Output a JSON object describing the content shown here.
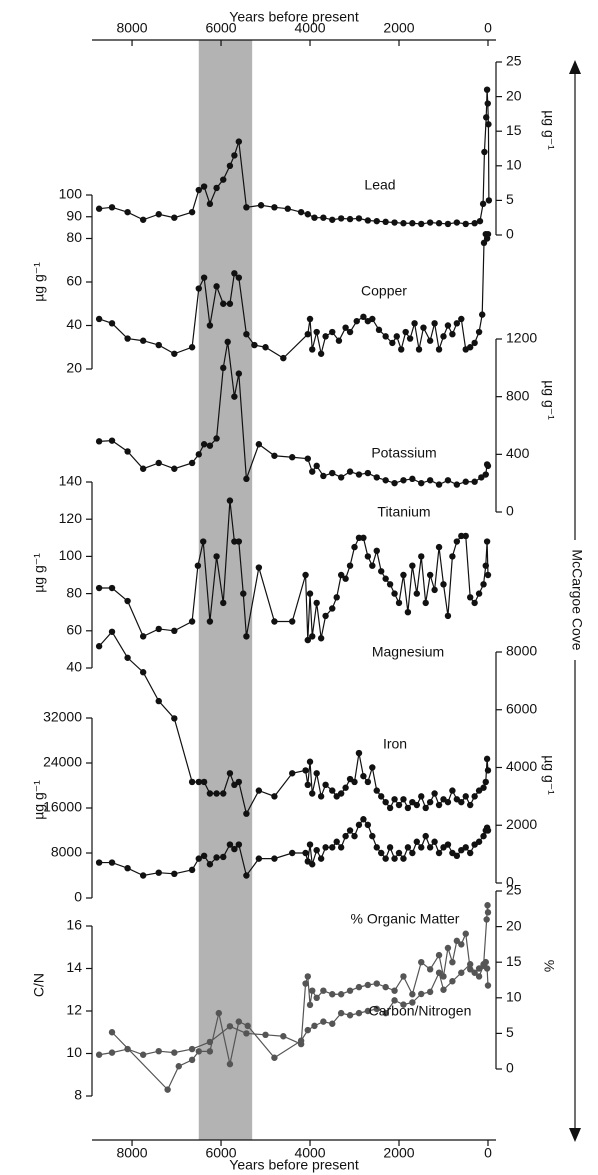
{
  "chart_data": {
    "type": "line",
    "x_label": "Years before present",
    "site": "McCargoe Cove",
    "xlim": [
      8900,
      -180
    ],
    "xticks": [
      8000,
      6000,
      4000,
      2000,
      0
    ],
    "shade": [
      6500,
      5300
    ],
    "axes": [
      {
        "side": "right",
        "label": "µg g⁻¹",
        "ylim": [
          0,
          25
        ],
        "yticks": [
          0,
          5,
          10,
          15,
          20,
          25
        ]
      },
      {
        "side": "left",
        "label": "µg g⁻¹",
        "ylim": [
          20,
          100
        ],
        "yticks": [
          20,
          40,
          60,
          80,
          90,
          100
        ]
      },
      {
        "side": "right",
        "label": "µg g⁻¹",
        "ylim": [
          0,
          1200
        ],
        "yticks": [
          0,
          400,
          800,
          1200
        ]
      },
      {
        "side": "left",
        "label": "µg g⁻¹",
        "ylim": [
          40,
          140
        ],
        "yticks": [
          40,
          60,
          80,
          100,
          120,
          140
        ]
      },
      {
        "side": "right",
        "label": "µg g⁻¹",
        "ylim": [
          0,
          8000
        ],
        "yticks": [
          0,
          2000,
          4000,
          6000,
          8000
        ]
      },
      {
        "side": "left",
        "label": "µg g⁻¹",
        "ylim": [
          0,
          32000
        ],
        "yticks": [
          0,
          8000,
          16000,
          24000,
          32000
        ]
      },
      {
        "side": "right",
        "label": "%",
        "ylim": [
          0,
          25
        ],
        "yticks": [
          0,
          5,
          10,
          15,
          20,
          25
        ]
      },
      {
        "side": "left",
        "label": "C/N",
        "ylim": [
          8,
          16
        ],
        "yticks": [
          8,
          10,
          12,
          14,
          16
        ]
      }
    ],
    "series": [
      {
        "name": "Lead",
        "color": "#111111",
        "axis": 0,
        "x": [
          8740,
          8450,
          8100,
          7750,
          7400,
          7050,
          6650,
          6500,
          6380,
          6250,
          6100,
          5950,
          5800,
          5700,
          5600,
          5430,
          5100,
          4800,
          4500,
          4200,
          4050,
          3900,
          3700,
          3500,
          3300,
          3100,
          2900,
          2700,
          2500,
          2300,
          2100,
          1900,
          1700,
          1500,
          1300,
          1100,
          900,
          700,
          500,
          300,
          180,
          110,
          80,
          40,
          20,
          5,
          -10,
          -20
        ],
        "values": [
          3.8,
          4.0,
          3.3,
          2.2,
          3.0,
          2.5,
          3.3,
          6.5,
          7.0,
          4.5,
          6.8,
          8.0,
          10.0,
          11.5,
          13.5,
          4.0,
          4.3,
          4.0,
          3.8,
          3.3,
          3.0,
          2.5,
          2.5,
          2.2,
          2.4,
          2.3,
          2.4,
          2.1,
          2.0,
          1.9,
          1.8,
          1.7,
          1.7,
          1.6,
          1.8,
          1.7,
          1.6,
          1.8,
          1.6,
          1.7,
          2.0,
          4.5,
          12,
          17,
          21,
          19,
          16,
          5
        ]
      },
      {
        "name": "Copper",
        "color": "#111111",
        "axis": 1,
        "x": [
          8740,
          8450,
          8100,
          7750,
          7400,
          7050,
          6650,
          6500,
          6380,
          6250,
          6100,
          5950,
          5800,
          5700,
          5600,
          5430,
          5250,
          5000,
          4600,
          4050,
          4000,
          3950,
          3850,
          3750,
          3650,
          3500,
          3350,
          3200,
          3100,
          2950,
          2800,
          2700,
          2600,
          2450,
          2300,
          2150,
          2050,
          1950,
          1850,
          1750,
          1650,
          1550,
          1450,
          1300,
          1200,
          1100,
          1000,
          900,
          800,
          700,
          600,
          500,
          400,
          300,
          200,
          130,
          90,
          50,
          20,
          0
        ],
        "values": [
          43,
          41,
          34,
          33,
          31,
          27,
          30,
          57,
          62,
          40,
          58,
          50,
          50,
          64,
          62,
          36,
          31,
          30,
          25,
          36,
          43,
          29,
          37,
          27,
          35,
          37,
          33,
          39,
          37,
          42,
          44,
          42,
          43,
          38,
          35,
          32,
          35,
          29,
          37,
          34,
          41,
          29,
          39,
          33,
          41,
          29,
          35,
          40,
          36,
          41,
          43,
          29,
          30,
          32,
          37,
          45,
          78,
          82,
          80,
          82
        ]
      },
      {
        "name": "Potassium",
        "color": "#111111",
        "axis": 2,
        "x": [
          8740,
          8450,
          8100,
          7750,
          7400,
          7050,
          6650,
          6500,
          6380,
          6250,
          6100,
          5950,
          5850,
          5700,
          5600,
          5430,
          5150,
          4800,
          4400,
          4050,
          3950,
          3850,
          3700,
          3500,
          3300,
          3100,
          2900,
          2700,
          2500,
          2300,
          2100,
          1900,
          1700,
          1500,
          1300,
          1100,
          900,
          700,
          500,
          300,
          150,
          50,
          20,
          0
        ],
        "values": [
          490,
          495,
          420,
          300,
          340,
          300,
          340,
          400,
          470,
          460,
          510,
          1000,
          1180,
          800,
          960,
          230,
          470,
          390,
          380,
          370,
          280,
          320,
          250,
          270,
          240,
          280,
          260,
          270,
          240,
          220,
          200,
          220,
          230,
          200,
          220,
          190,
          220,
          190,
          210,
          210,
          240,
          260,
          330,
          320
        ]
      },
      {
        "name": "Titanium",
        "color": "#111111",
        "axis": 3,
        "x": [
          8740,
          8450,
          8100,
          7750,
          7400,
          7050,
          6650,
          6520,
          6400,
          6250,
          6100,
          5950,
          5800,
          5700,
          5600,
          5500,
          5430,
          5150,
          4800,
          4400,
          4100,
          4050,
          4000,
          3950,
          3850,
          3750,
          3650,
          3500,
          3400,
          3300,
          3200,
          3100,
          3000,
          2900,
          2800,
          2700,
          2600,
          2500,
          2400,
          2300,
          2200,
          2100,
          2000,
          1900,
          1800,
          1700,
          1600,
          1500,
          1400,
          1300,
          1200,
          1100,
          1000,
          900,
          800,
          700,
          600,
          500,
          400,
          300,
          200,
          100,
          50,
          20,
          0
        ],
        "values": [
          83,
          83,
          76,
          57,
          61,
          60,
          65,
          95,
          108,
          65,
          100,
          75,
          130,
          108,
          108,
          80,
          57,
          94,
          65,
          65,
          90,
          55,
          80,
          57,
          75,
          56,
          68,
          72,
          78,
          90,
          88,
          95,
          105,
          110,
          110,
          100,
          95,
          103,
          92,
          88,
          85,
          80,
          75,
          90,
          70,
          95,
          80,
          100,
          75,
          90,
          82,
          105,
          85,
          68,
          100,
          108,
          111,
          111,
          78,
          75,
          80,
          85,
          95,
          108,
          90
        ]
      },
      {
        "name": "Magnesium",
        "color": "#111111",
        "axis": 4,
        "x": [
          8740,
          8450,
          8100,
          7750,
          7400,
          7050,
          6650,
          6500,
          6380,
          6250,
          6100,
          5950,
          5800,
          5700,
          5600,
          5430,
          5150,
          4800,
          4400,
          4100,
          4050,
          4000,
          3950,
          3850,
          3750,
          3650,
          3500,
          3400,
          3300,
          3200,
          3100,
          3000,
          2900,
          2800,
          2700,
          2600,
          2500,
          2400,
          2300,
          2200,
          2100,
          2000,
          1900,
          1800,
          1700,
          1600,
          1500,
          1400,
          1300,
          1200,
          1100,
          1000,
          900,
          800,
          700,
          600,
          500,
          400,
          300,
          200,
          100,
          50,
          20,
          0
        ],
        "values": [
          8200,
          8700,
          7800,
          7300,
          6300,
          5700,
          3500,
          3500,
          3500,
          3100,
          3100,
          3100,
          3800,
          3400,
          3500,
          2400,
          3200,
          3000,
          3800,
          3900,
          3400,
          4200,
          3100,
          3800,
          3000,
          3400,
          3200,
          3000,
          3100,
          3300,
          3600,
          3500,
          4500,
          3700,
          3500,
          4000,
          3200,
          3000,
          2800,
          2600,
          2900,
          2700,
          2900,
          2600,
          2800,
          2700,
          3000,
          2600,
          2800,
          3100,
          2700,
          2900,
          2800,
          3200,
          2900,
          2800,
          3000,
          2700,
          3000,
          3200,
          3300,
          3500,
          4300,
          3900
        ]
      },
      {
        "name": "Iron",
        "color": "#111111",
        "axis": 5,
        "x": [
          8740,
          8450,
          8100,
          7750,
          7400,
          7050,
          6650,
          6500,
          6380,
          6250,
          6100,
          5950,
          5800,
          5700,
          5600,
          5430,
          5150,
          4800,
          4400,
          4100,
          4050,
          4000,
          3950,
          3850,
          3750,
          3650,
          3500,
          3400,
          3300,
          3200,
          3100,
          3000,
          2900,
          2800,
          2700,
          2600,
          2500,
          2400,
          2300,
          2200,
          2100,
          2000,
          1900,
          1800,
          1700,
          1600,
          1500,
          1400,
          1300,
          1200,
          1100,
          1000,
          900,
          800,
          700,
          600,
          500,
          400,
          300,
          200,
          100,
          50,
          20,
          0
        ],
        "values": [
          6300,
          6300,
          5300,
          4000,
          4500,
          4300,
          5000,
          7000,
          7500,
          6000,
          7200,
          7300,
          9500,
          8700,
          9500,
          4000,
          7000,
          7000,
          8000,
          8000,
          6500,
          9500,
          6000,
          8500,
          7000,
          9000,
          9000,
          10000,
          9000,
          11000,
          12000,
          11000,
          13000,
          14000,
          13000,
          11000,
          9000,
          8000,
          7000,
          9000,
          7000,
          8000,
          7000,
          9000,
          8000,
          10000,
          9000,
          11000,
          9000,
          10000,
          8000,
          9000,
          9500,
          8000,
          7500,
          8500,
          9000,
          8000,
          9500,
          10000,
          11000,
          12000,
          12500,
          12000
        ]
      },
      {
        "name": "% Organic Matter",
        "color": "#555555",
        "axis": 6,
        "x": [
          8740,
          8450,
          8100,
          7750,
          7400,
          7050,
          6650,
          6250,
          5800,
          5430,
          5000,
          4600,
          4200,
          4100,
          4050,
          4000,
          3950,
          3850,
          3700,
          3500,
          3300,
          3100,
          2900,
          2700,
          2500,
          2300,
          2100,
          1900,
          1700,
          1500,
          1300,
          1100,
          1000,
          900,
          800,
          700,
          600,
          500,
          400,
          200,
          100,
          30,
          10,
          0
        ],
        "values": [
          2.0,
          2.3,
          2.8,
          2.0,
          2.5,
          2.3,
          2.8,
          3.8,
          6.0,
          5.0,
          4.8,
          4.6,
          3.5,
          12.0,
          13.0,
          9.0,
          11.0,
          10.0,
          11.0,
          10.5,
          10.5,
          11.0,
          11.5,
          11.8,
          12.0,
          11.5,
          11.0,
          13.0,
          10.5,
          15.0,
          14.0,
          16.0,
          13.0,
          17.0,
          15.0,
          18.0,
          17.5,
          19.0,
          14.0,
          13.0,
          14.5,
          21.0,
          23.0,
          22.0
        ]
      },
      {
        "name": "Carbon/Nitrogen",
        "color": "#555555",
        "axis": 7,
        "x": [
          8450,
          7200,
          6950,
          6650,
          6500,
          6250,
          6050,
          5800,
          5600,
          5400,
          4800,
          4200,
          4050,
          3900,
          3700,
          3500,
          3300,
          3100,
          2900,
          2700,
          2500,
          2300,
          2100,
          1900,
          1700,
          1500,
          1300,
          1100,
          1000,
          800,
          600,
          400,
          300,
          200,
          100,
          50,
          20,
          0
        ],
        "values": [
          11.0,
          8.3,
          9.4,
          9.7,
          10.1,
          10.1,
          11.9,
          9.5,
          11.5,
          11.3,
          9.8,
          10.6,
          11.1,
          11.3,
          11.5,
          11.4,
          11.9,
          11.8,
          11.9,
          12.0,
          12.1,
          11.9,
          12.5,
          12.3,
          12.4,
          12.8,
          12.9,
          13.8,
          13.0,
          13.4,
          13.8,
          14.2,
          13.8,
          14.0,
          14.2,
          14.3,
          14.0,
          13.2
        ]
      }
    ]
  }
}
